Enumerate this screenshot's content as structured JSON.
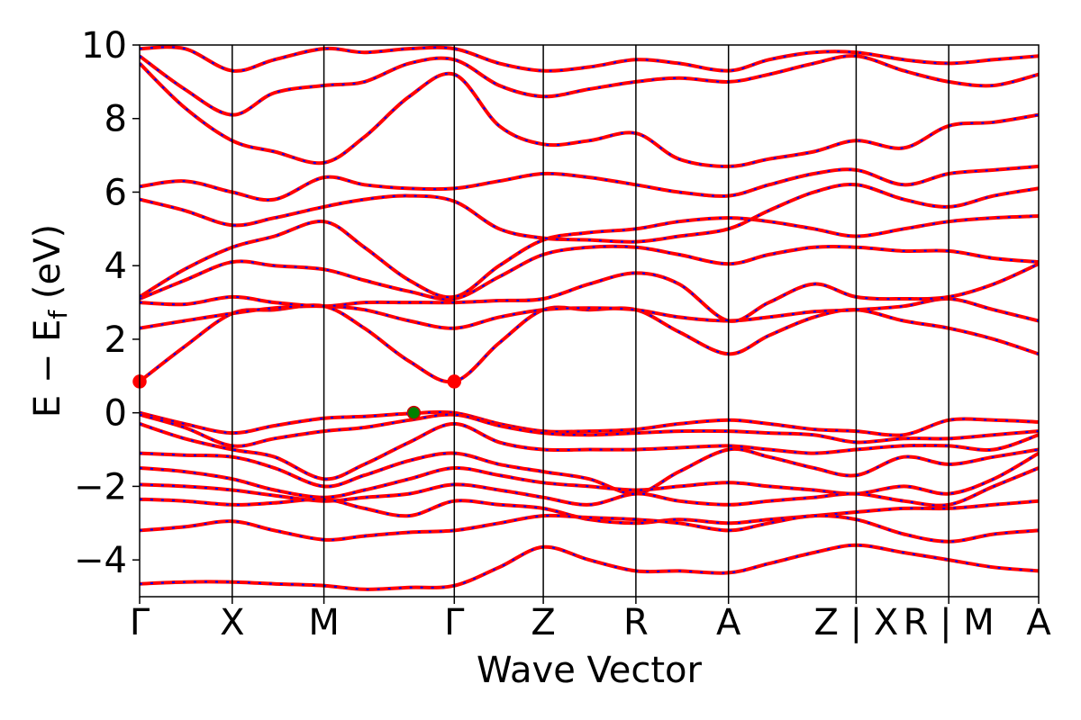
{
  "chart_data": {
    "type": "line",
    "title": "",
    "xlabel": "Wave Vector",
    "ylabel": "E − E_f (eV)",
    "ylabel_parts": {
      "main": "E − E",
      "sub": "f",
      "unit": " (eV)"
    },
    "ylim": [
      -5,
      10
    ],
    "yticks": [
      -4,
      -2,
      0,
      2,
      4,
      6,
      8,
      10
    ],
    "ytick_labels": [
      "−4",
      "−2",
      "0",
      "2",
      "4",
      "6",
      "8",
      "10"
    ],
    "xlim": [
      0,
      1
    ],
    "kpoints": [
      {
        "label": "Γ",
        "x": 0.0
      },
      {
        "label": "X",
        "x": 0.103
      },
      {
        "label": "M",
        "x": 0.205
      },
      {
        "label": "Γ",
        "x": 0.35
      },
      {
        "label": "Z",
        "x": 0.449
      },
      {
        "label": "R",
        "x": 0.552
      },
      {
        "label": "A",
        "x": 0.655
      },
      {
        "label": "Z | X",
        "x": 0.797
      },
      {
        "label": "R | M",
        "x": 0.9
      },
      {
        "label": "A",
        "x": 1.0
      }
    ],
    "grid": false,
    "legend": "none",
    "colors": {
      "band_main": "#ff0000",
      "band_overlay": "#0000ff",
      "cbm_marker": "#ff0000",
      "vbm_marker": "#008000",
      "frame": "#000000"
    },
    "markers": [
      {
        "name": "cbm",
        "x": 0.0,
        "y": 0.85
      },
      {
        "name": "cbm",
        "x": 0.35,
        "y": 0.85
      },
      {
        "name": "vbm",
        "x": 0.305,
        "y": 0.0
      }
    ],
    "series": [
      {
        "x": [
          0.0,
          0.05,
          0.103,
          0.15,
          0.205,
          0.25,
          0.3,
          0.35,
          0.4,
          0.449,
          0.5,
          0.552,
          0.6,
          0.655,
          0.7,
          0.75,
          0.797,
          0.85,
          0.9,
          0.95,
          1.0
        ],
        "y": [
          0.0,
          -0.3,
          -0.55,
          -0.35,
          -0.15,
          -0.1,
          -0.02,
          0.0,
          -0.3,
          -0.5,
          -0.5,
          -0.45,
          -0.3,
          -0.2,
          -0.3,
          -0.45,
          -0.5,
          -0.6,
          -0.2,
          -0.2,
          -0.25
        ]
      },
      {
        "x": [
          0.0,
          0.05,
          0.103,
          0.15,
          0.205,
          0.25,
          0.3,
          0.35,
          0.4,
          0.449,
          0.5,
          0.552,
          0.6,
          0.655,
          0.7,
          0.75,
          0.797,
          0.85,
          0.9,
          0.95,
          1.0
        ],
        "y": [
          -0.05,
          -0.4,
          -0.9,
          -0.7,
          -0.5,
          -0.4,
          -0.2,
          -0.05,
          -0.35,
          -0.55,
          -0.6,
          -0.55,
          -0.5,
          -0.5,
          -0.55,
          -0.6,
          -0.8,
          -0.7,
          -0.7,
          -0.6,
          -0.5
        ]
      },
      {
        "x": [
          0.0,
          0.05,
          0.103,
          0.15,
          0.205,
          0.25,
          0.3,
          0.35,
          0.4,
          0.449,
          0.5,
          0.552,
          0.6,
          0.655,
          0.7,
          0.75,
          0.797,
          0.85,
          0.9,
          0.95,
          1.0
        ],
        "y": [
          -0.3,
          -0.7,
          -1.0,
          -1.2,
          -1.8,
          -1.4,
          -0.8,
          -0.3,
          -0.8,
          -1.0,
          -1.0,
          -1.0,
          -0.95,
          -0.9,
          -1.0,
          -1.1,
          -1.0,
          -0.9,
          -0.9,
          -1.0,
          -0.6
        ]
      },
      {
        "x": [
          0.0,
          0.05,
          0.103,
          0.15,
          0.205,
          0.25,
          0.3,
          0.35,
          0.4,
          0.449,
          0.5,
          0.552,
          0.6,
          0.655,
          0.7,
          0.75,
          0.797,
          0.85,
          0.9,
          0.95,
          1.0
        ],
        "y": [
          -1.1,
          -1.15,
          -1.2,
          -1.5,
          -2.0,
          -1.7,
          -1.3,
          -1.1,
          -1.4,
          -1.6,
          -1.8,
          -2.2,
          -1.6,
          -1.0,
          -1.2,
          -1.5,
          -1.7,
          -1.2,
          -1.4,
          -1.2,
          -1.0
        ]
      },
      {
        "x": [
          0.0,
          0.05,
          0.103,
          0.15,
          0.205,
          0.25,
          0.3,
          0.35,
          0.4,
          0.449,
          0.5,
          0.552,
          0.6,
          0.655,
          0.7,
          0.75,
          0.797,
          0.85,
          0.9,
          0.95,
          1.0
        ],
        "y": [
          -1.5,
          -1.6,
          -1.8,
          -2.1,
          -2.3,
          -2.1,
          -1.8,
          -1.5,
          -1.7,
          -1.9,
          -2.0,
          -2.1,
          -2.0,
          -1.9,
          -2.0,
          -2.1,
          -2.2,
          -2.0,
          -2.2,
          -1.8,
          -1.1
        ]
      },
      {
        "x": [
          0.0,
          0.05,
          0.103,
          0.15,
          0.205,
          0.25,
          0.3,
          0.35,
          0.4,
          0.449,
          0.5,
          0.552,
          0.6,
          0.655,
          0.7,
          0.75,
          0.797,
          0.85,
          0.9,
          0.95,
          1.0
        ],
        "y": [
          -1.95,
          -2.0,
          -2.1,
          -2.25,
          -2.4,
          -2.3,
          -2.2,
          -1.95,
          -2.1,
          -2.3,
          -2.5,
          -2.2,
          -2.4,
          -2.5,
          -2.4,
          -2.3,
          -2.2,
          -2.4,
          -2.5,
          -2.0,
          -1.5
        ]
      },
      {
        "x": [
          0.0,
          0.05,
          0.103,
          0.15,
          0.205,
          0.25,
          0.3,
          0.35,
          0.4,
          0.449,
          0.5,
          0.552,
          0.6,
          0.655,
          0.7,
          0.75,
          0.797,
          0.85,
          0.9,
          0.95,
          1.0
        ],
        "y": [
          -2.35,
          -2.4,
          -2.5,
          -2.45,
          -2.35,
          -2.6,
          -2.8,
          -2.4,
          -2.5,
          -2.6,
          -2.9,
          -3.0,
          -2.9,
          -3.0,
          -2.9,
          -2.8,
          -2.7,
          -2.6,
          -2.6,
          -2.5,
          -2.4
        ]
      },
      {
        "x": [
          0.0,
          0.05,
          0.103,
          0.15,
          0.205,
          0.25,
          0.3,
          0.35,
          0.4,
          0.449,
          0.5,
          0.552,
          0.6,
          0.655,
          0.7,
          0.75,
          0.797,
          0.85,
          0.9,
          0.95,
          1.0
        ],
        "y": [
          -3.2,
          -3.1,
          -2.95,
          -3.2,
          -3.45,
          -3.35,
          -3.25,
          -3.2,
          -3.0,
          -2.8,
          -2.85,
          -2.9,
          -3.0,
          -3.2,
          -3.0,
          -2.8,
          -2.9,
          -3.3,
          -3.5,
          -3.3,
          -3.2
        ]
      },
      {
        "x": [
          0.0,
          0.05,
          0.103,
          0.15,
          0.205,
          0.25,
          0.3,
          0.35,
          0.4,
          0.449,
          0.5,
          0.552,
          0.6,
          0.655,
          0.7,
          0.75,
          0.797,
          0.85,
          0.9,
          0.95,
          1.0
        ],
        "y": [
          -4.65,
          -4.6,
          -4.6,
          -4.65,
          -4.7,
          -4.8,
          -4.75,
          -4.7,
          -4.2,
          -3.65,
          -4.0,
          -4.3,
          -4.3,
          -4.35,
          -4.1,
          -3.8,
          -3.6,
          -3.8,
          -4.0,
          -4.2,
          -4.3
        ]
      },
      {
        "x": [
          0.0,
          0.05,
          0.103,
          0.15,
          0.205,
          0.25,
          0.3,
          0.35,
          0.4,
          0.449,
          0.5,
          0.552,
          0.6,
          0.655,
          0.7,
          0.75,
          0.797,
          0.85,
          0.9,
          0.95,
          1.0
        ],
        "y": [
          0.85,
          1.8,
          2.7,
          2.8,
          2.9,
          2.3,
          1.4,
          0.85,
          1.9,
          2.8,
          2.8,
          2.8,
          2.2,
          1.6,
          2.1,
          2.6,
          2.8,
          2.5,
          2.3,
          2.0,
          1.6
        ]
      },
      {
        "x": [
          0.0,
          0.05,
          0.103,
          0.15,
          0.205,
          0.25,
          0.3,
          0.35,
          0.4,
          0.449,
          0.5,
          0.552,
          0.6,
          0.655,
          0.7,
          0.75,
          0.797,
          0.85,
          0.9,
          0.95,
          1.0
        ],
        "y": [
          2.3,
          2.5,
          2.7,
          2.85,
          2.9,
          2.8,
          2.5,
          2.3,
          2.6,
          2.8,
          2.85,
          2.8,
          2.6,
          2.5,
          2.6,
          2.75,
          2.8,
          2.9,
          3.1,
          2.8,
          2.5
        ]
      },
      {
        "x": [
          0.0,
          0.05,
          0.103,
          0.15,
          0.205,
          0.25,
          0.3,
          0.35,
          0.4,
          0.449,
          0.5,
          0.552,
          0.6,
          0.655,
          0.7,
          0.75,
          0.797,
          0.85,
          0.9,
          0.95,
          1.0
        ],
        "y": [
          3.0,
          2.95,
          3.15,
          3.0,
          2.9,
          3.0,
          3.0,
          3.0,
          3.05,
          3.1,
          3.5,
          3.8,
          3.5,
          2.5,
          3.0,
          3.5,
          3.15,
          3.1,
          3.15,
          3.5,
          4.05
        ]
      },
      {
        "x": [
          0.0,
          0.05,
          0.103,
          0.15,
          0.205,
          0.25,
          0.3,
          0.35,
          0.4,
          0.449,
          0.5,
          0.552,
          0.6,
          0.655,
          0.7,
          0.75,
          0.797,
          0.85,
          0.9,
          0.95,
          1.0
        ],
        "y": [
          3.1,
          3.6,
          4.1,
          4.0,
          3.9,
          3.6,
          3.3,
          3.1,
          3.7,
          4.3,
          4.5,
          4.5,
          4.3,
          4.05,
          4.3,
          4.5,
          4.5,
          4.4,
          4.4,
          4.2,
          4.1
        ]
      },
      {
        "x": [
          0.0,
          0.05,
          0.103,
          0.15,
          0.205,
          0.25,
          0.3,
          0.35,
          0.4,
          0.449,
          0.5,
          0.552,
          0.6,
          0.655,
          0.7,
          0.75,
          0.797,
          0.85,
          0.9,
          0.95,
          1.0
        ],
        "y": [
          3.15,
          3.9,
          4.5,
          4.8,
          5.2,
          4.5,
          3.6,
          3.15,
          4.0,
          4.7,
          4.9,
          5.0,
          5.2,
          5.3,
          5.2,
          5.0,
          4.8,
          5.0,
          5.2,
          5.3,
          5.35
        ]
      },
      {
        "x": [
          0.0,
          0.05,
          0.103,
          0.15,
          0.205,
          0.25,
          0.3,
          0.35,
          0.4,
          0.449,
          0.5,
          0.552,
          0.6,
          0.655,
          0.7,
          0.75,
          0.797,
          0.85,
          0.9,
          0.95,
          1.0
        ],
        "y": [
          5.8,
          5.5,
          5.1,
          5.3,
          5.6,
          5.8,
          5.9,
          5.75,
          5.0,
          4.75,
          4.7,
          4.65,
          4.8,
          5.0,
          5.5,
          6.0,
          6.2,
          5.8,
          5.6,
          5.9,
          6.1
        ]
      },
      {
        "x": [
          0.0,
          0.05,
          0.103,
          0.15,
          0.205,
          0.25,
          0.3,
          0.35,
          0.4,
          0.449,
          0.5,
          0.552,
          0.6,
          0.655,
          0.7,
          0.75,
          0.797,
          0.85,
          0.9,
          0.95,
          1.0
        ],
        "y": [
          6.15,
          6.3,
          6.0,
          5.8,
          6.4,
          6.2,
          6.1,
          6.1,
          6.3,
          6.5,
          6.4,
          6.2,
          6.0,
          5.9,
          6.2,
          6.5,
          6.6,
          6.2,
          6.5,
          6.6,
          6.7
        ]
      },
      {
        "x": [
          0.0,
          0.05,
          0.103,
          0.15,
          0.205,
          0.25,
          0.3,
          0.35,
          0.4,
          0.449,
          0.5,
          0.552,
          0.6,
          0.655,
          0.7,
          0.75,
          0.797,
          0.85,
          0.9,
          0.95,
          1.0
        ],
        "y": [
          9.5,
          8.3,
          7.4,
          7.1,
          6.8,
          7.5,
          8.6,
          9.2,
          7.8,
          7.3,
          7.4,
          7.6,
          6.9,
          6.7,
          6.9,
          7.1,
          7.4,
          7.2,
          7.8,
          7.9,
          8.1
        ]
      },
      {
        "x": [
          0.0,
          0.05,
          0.103,
          0.15,
          0.205,
          0.25,
          0.3,
          0.35,
          0.4,
          0.449,
          0.5,
          0.552,
          0.6,
          0.655,
          0.7,
          0.75,
          0.797,
          0.85,
          0.9,
          0.95,
          1.0
        ],
        "y": [
          9.7,
          8.8,
          8.1,
          8.7,
          8.9,
          9.0,
          9.5,
          9.6,
          8.9,
          8.6,
          8.8,
          9.0,
          9.1,
          9.0,
          9.2,
          9.5,
          9.7,
          9.3,
          9.0,
          8.9,
          9.2
        ]
      },
      {
        "x": [
          0.0,
          0.05,
          0.103,
          0.15,
          0.205,
          0.25,
          0.3,
          0.35,
          0.4,
          0.449,
          0.5,
          0.552,
          0.6,
          0.655,
          0.7,
          0.75,
          0.797,
          0.85,
          0.9,
          0.95,
          1.0
        ],
        "y": [
          9.9,
          9.9,
          9.3,
          9.6,
          9.9,
          9.8,
          9.9,
          9.9,
          9.5,
          9.3,
          9.4,
          9.6,
          9.5,
          9.3,
          9.6,
          9.8,
          9.8,
          9.6,
          9.5,
          9.6,
          9.7
        ]
      }
    ]
  }
}
